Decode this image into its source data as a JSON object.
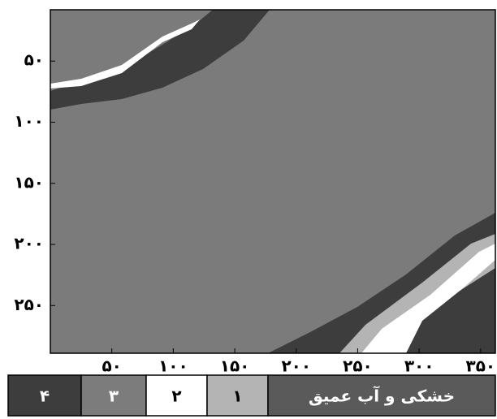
{
  "chart_data": {
    "type": "raster",
    "xlim": [
      0,
      362
    ],
    "ylim": [
      8,
      289
    ],
    "xticks": [
      {
        "value": 50,
        "label": "۵۰"
      },
      {
        "value": 100,
        "label": "۱۰۰"
      },
      {
        "value": 150,
        "label": "۱۵۰"
      },
      {
        "value": 200,
        "label": "۲۰۰"
      },
      {
        "value": 250,
        "label": "۲۵۰"
      },
      {
        "value": 300,
        "label": "۳۰۰"
      },
      {
        "value": 350,
        "label": "۳۵۰"
      }
    ],
    "yticks": [
      {
        "value": 50,
        "label": "۵۰"
      },
      {
        "value": 100,
        "label": "۱۰۰"
      },
      {
        "value": 150,
        "label": "۱۵۰"
      },
      {
        "value": 200,
        "label": "۲۰۰"
      },
      {
        "value": 250,
        "label": "۲۵۰"
      }
    ],
    "legend": [
      {
        "label": "۴",
        "color": "#3d3d3d"
      },
      {
        "label": "۳",
        "color": "#7c7c7c"
      },
      {
        "label": "۲",
        "color": "#ffffff"
      },
      {
        "label": "۱",
        "color": "#b4b4b4"
      },
      {
        "label": "خشکی و آب عمیق",
        "color": "#5a5a5a"
      }
    ]
  }
}
